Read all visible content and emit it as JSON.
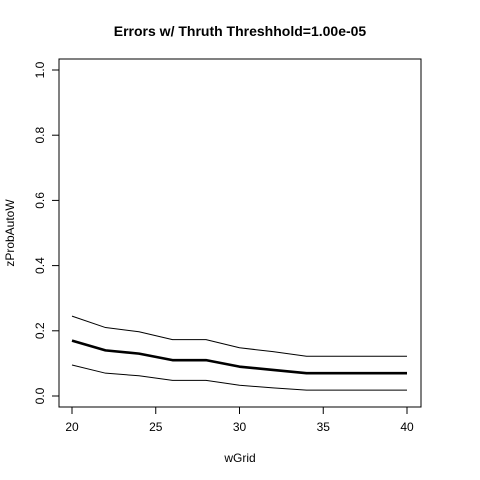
{
  "chart_data": {
    "type": "line",
    "title": "Errors w/ Thruth Threshhold=1.00e-05",
    "xlabel": "wGrid",
    "ylabel": "zProbAutoW",
    "xlim": [
      20,
      40
    ],
    "ylim": [
      0,
      1
    ],
    "x_ticks": [
      "20",
      "25",
      "30",
      "35",
      "40"
    ],
    "y_ticks": [
      "0.0",
      "0.2",
      "0.4",
      "0.6",
      "0.8",
      "1.0"
    ],
    "grid": false,
    "legend": "none",
    "x": [
      20,
      22,
      24,
      26,
      28,
      30,
      32,
      34,
      36,
      38,
      40
    ],
    "series": [
      {
        "role": "upper",
        "values": [
          0.245,
          0.21,
          0.197,
          0.173,
          0.173,
          0.148,
          0.136,
          0.122,
          0.122,
          0.122,
          0.122
        ]
      },
      {
        "role": "mean",
        "values": [
          0.17,
          0.14,
          0.13,
          0.11,
          0.11,
          0.09,
          0.08,
          0.07,
          0.07,
          0.07,
          0.07
        ]
      },
      {
        "role": "lower",
        "values": [
          0.095,
          0.07,
          0.062,
          0.048,
          0.048,
          0.033,
          0.025,
          0.018,
          0.018,
          0.018,
          0.018
        ]
      }
    ]
  }
}
